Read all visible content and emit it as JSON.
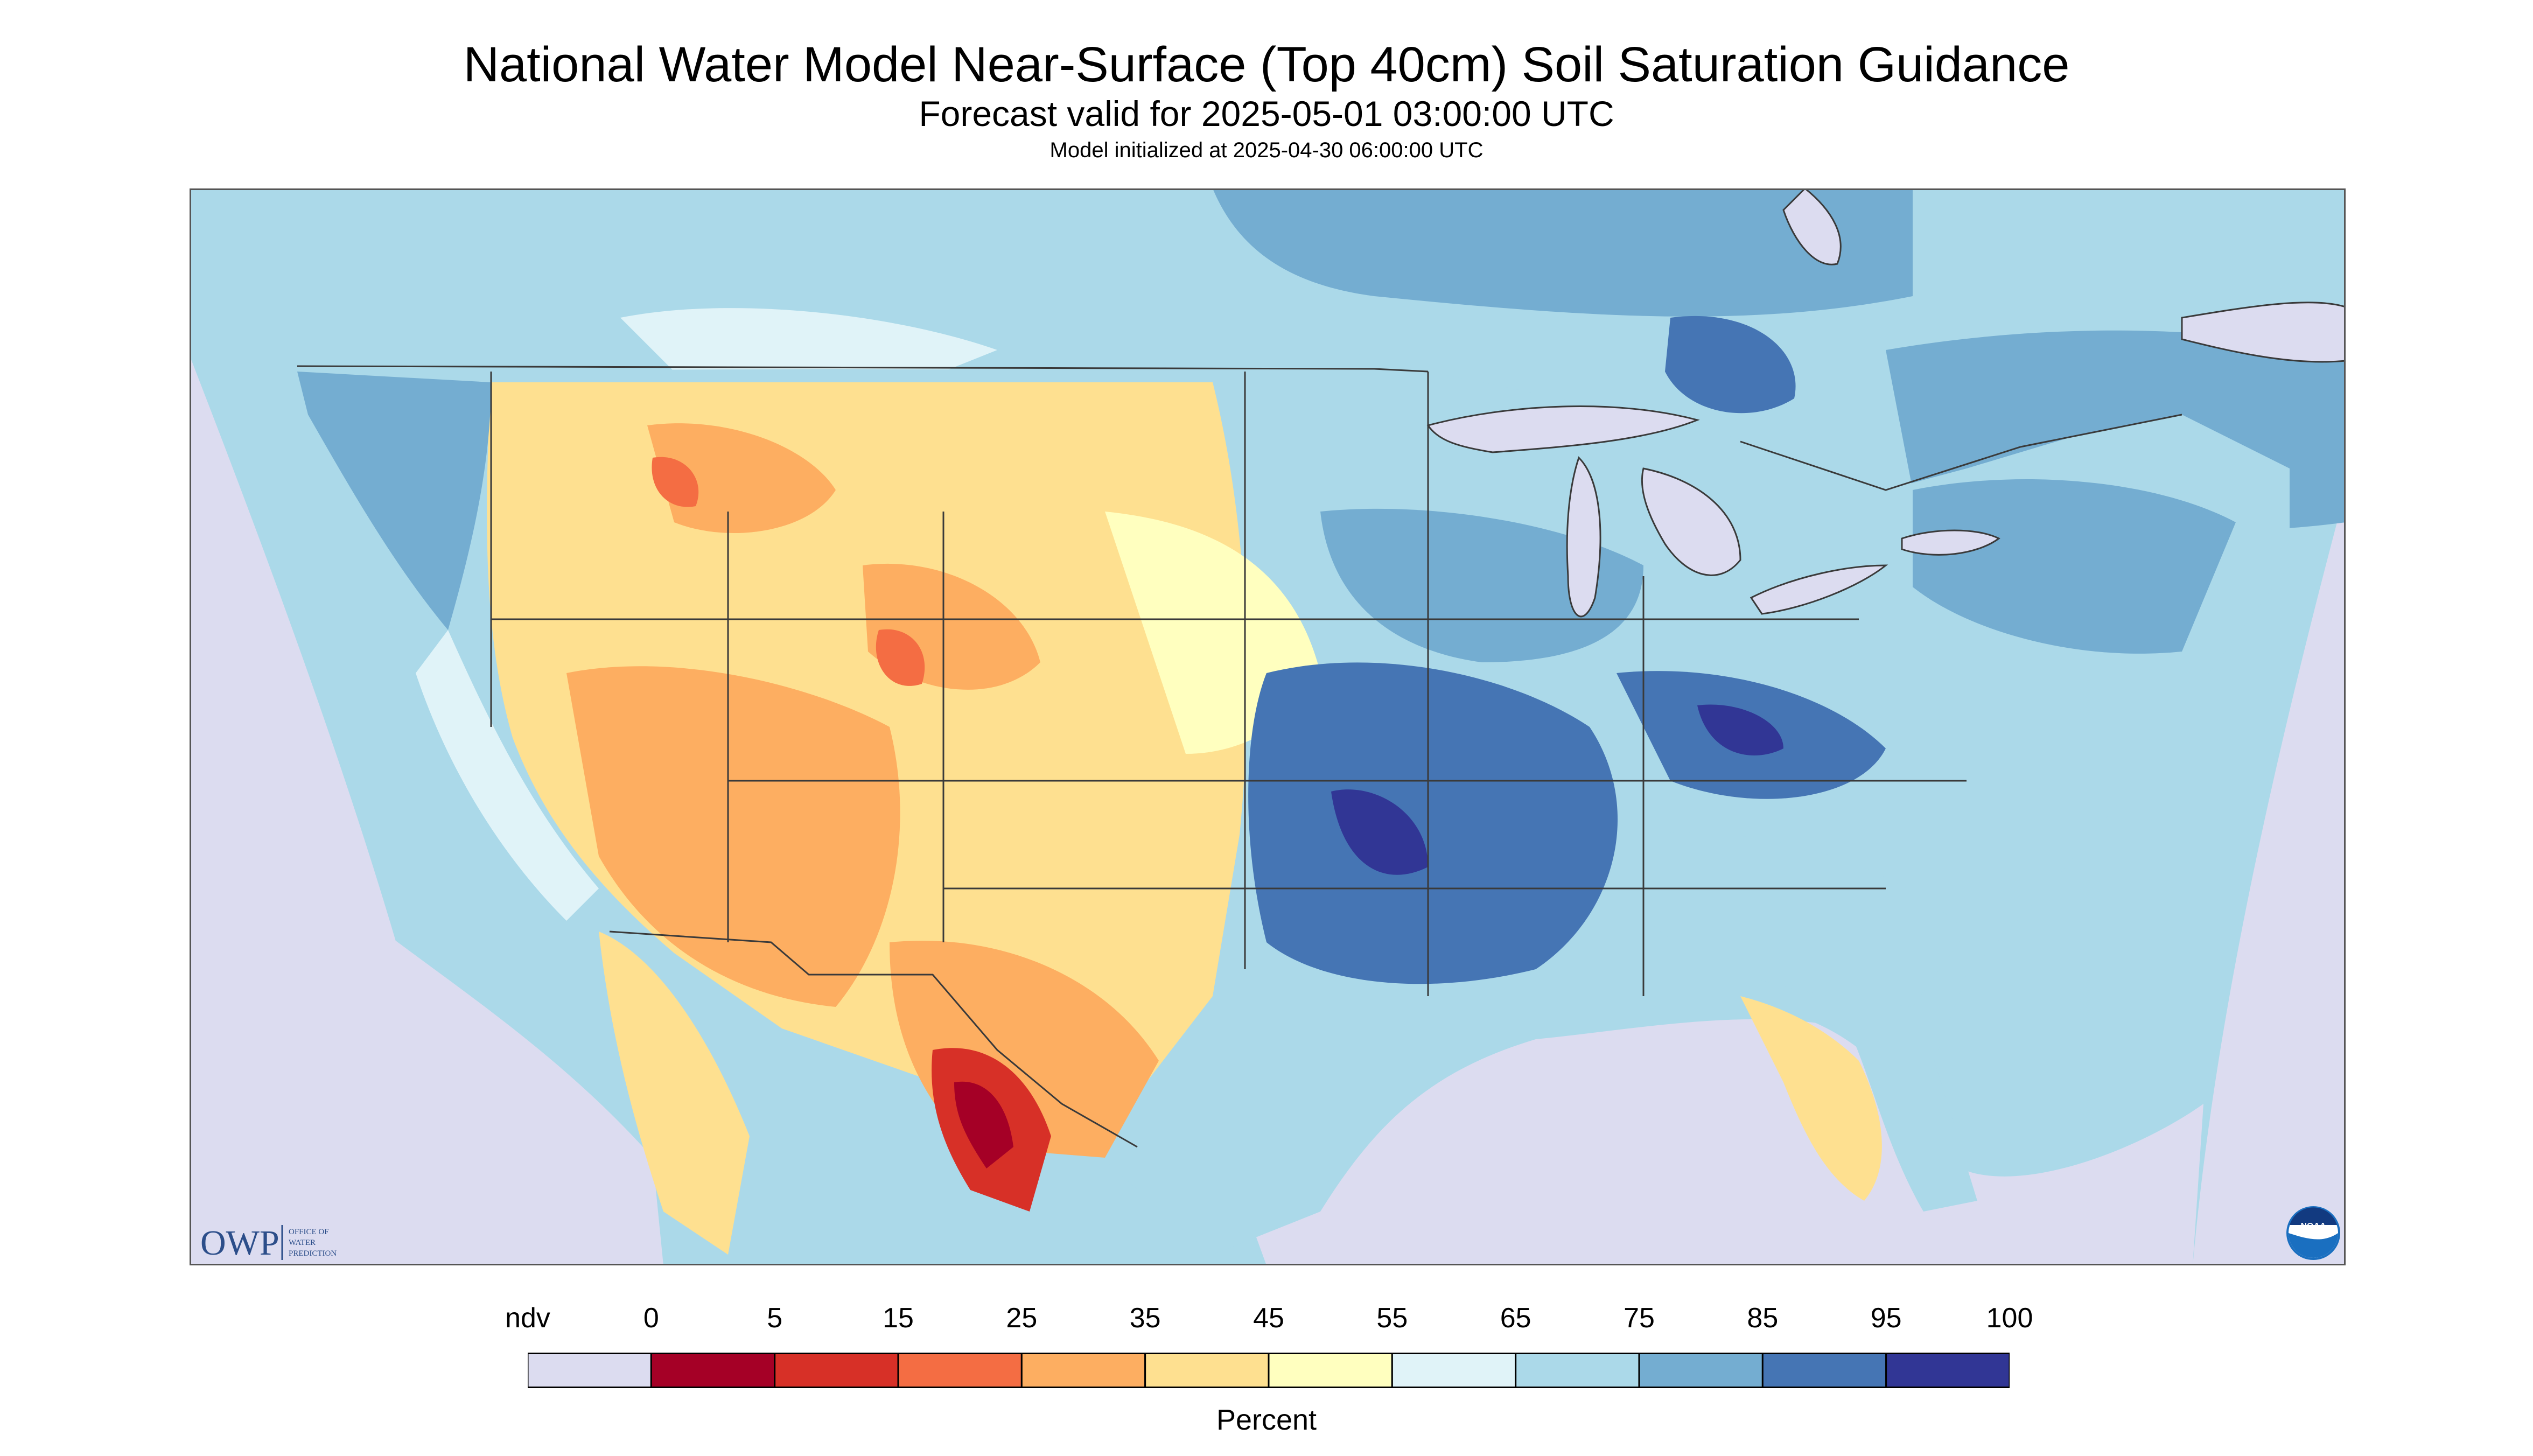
{
  "header": {
    "title": "National Water Model Near-Surface (Top 40cm) Soil Saturation Guidance",
    "subtitle": "Forecast valid for 2025-05-01 03:00:00 UTC",
    "init_line": "Model initialized at 2025-04-30 06:00:00 UTC"
  },
  "map": {
    "region": "CONUS",
    "logos": {
      "owp_text": "OWP",
      "owp_caption": [
        "OFFICE OF",
        "WATER",
        "PREDICTION"
      ],
      "noaa_text": "NOAA"
    },
    "colors": {
      "no_data": "#dcdcf0",
      "land_border": "#3a3a3a",
      "water_lake": "#dcdcf0"
    }
  },
  "legend": {
    "ticks": [
      "ndv",
      "0",
      "5",
      "15",
      "25",
      "35",
      "45",
      "55",
      "65",
      "75",
      "85",
      "95",
      "100"
    ],
    "bins": [
      {
        "label": "ndv",
        "color": "#dcdcf0"
      },
      {
        "label": "0-5",
        "color": "#a50026"
      },
      {
        "label": "5-15",
        "color": "#d73027"
      },
      {
        "label": "15-25",
        "color": "#f46d43"
      },
      {
        "label": "25-35",
        "color": "#fdae61"
      },
      {
        "label": "35-45",
        "color": "#fee090"
      },
      {
        "label": "45-55",
        "color": "#ffffbf"
      },
      {
        "label": "55-65",
        "color": "#e0f3f8"
      },
      {
        "label": "65-75",
        "color": "#abd9e9"
      },
      {
        "label": "75-85",
        "color": "#74add1"
      },
      {
        "label": "85-95",
        "color": "#4575b4"
      },
      {
        "label": "95-100",
        "color": "#313695"
      }
    ],
    "units": "Percent"
  }
}
